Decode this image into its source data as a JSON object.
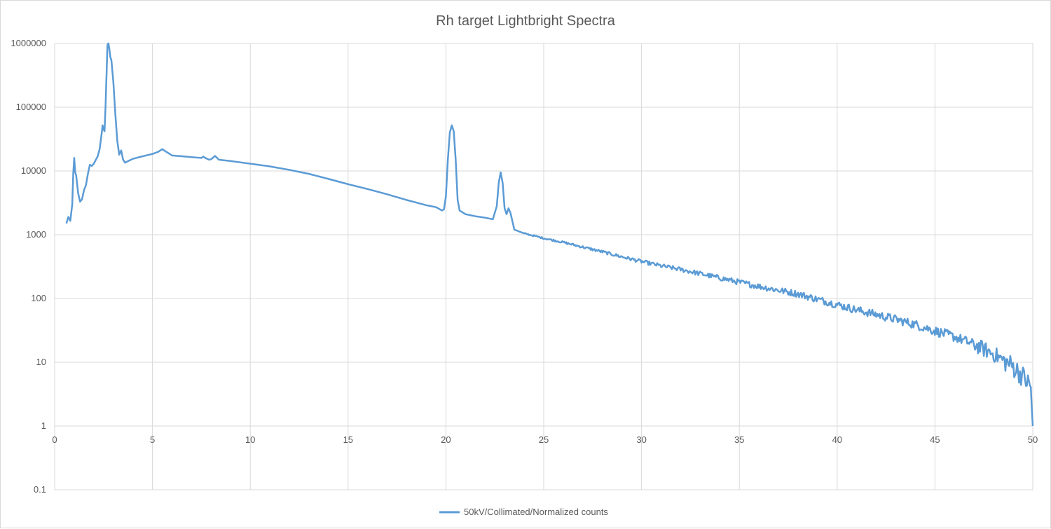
{
  "chart_data": {
    "type": "line",
    "title": "Rh target Lightbright Spectra",
    "xlabel": "",
    "ylabel": "",
    "y_scale": "log",
    "xlim": [
      0,
      50
    ],
    "ylim": [
      0.1,
      1000000
    ],
    "x_ticks": [
      "0",
      "5",
      "10",
      "15",
      "20",
      "25",
      "30",
      "35",
      "40",
      "45",
      "50"
    ],
    "y_ticks": [
      "0.1",
      "1",
      "10",
      "100",
      "1000",
      "10000",
      "100000",
      "1000000"
    ],
    "grid": true,
    "legend_position": "bottom",
    "series": [
      {
        "name": "50kV/Collimated/Normalized counts",
        "color": "#5b9bd5",
        "points": [
          [
            0.6,
            1500
          ],
          [
            0.7,
            1900
          ],
          [
            0.8,
            1650
          ],
          [
            0.9,
            3000
          ],
          [
            0.95,
            9000
          ],
          [
            1.0,
            16000
          ],
          [
            1.05,
            9500
          ],
          [
            1.1,
            8500
          ],
          [
            1.2,
            4500
          ],
          [
            1.3,
            3300
          ],
          [
            1.4,
            3600
          ],
          [
            1.5,
            5000
          ],
          [
            1.6,
            6000
          ],
          [
            1.7,
            9000
          ],
          [
            1.8,
            12500
          ],
          [
            1.9,
            12000
          ],
          [
            2.0,
            13000
          ],
          [
            2.2,
            17000
          ],
          [
            2.3,
            22000
          ],
          [
            2.4,
            38000
          ],
          [
            2.45,
            52000
          ],
          [
            2.5,
            45000
          ],
          [
            2.55,
            42000
          ],
          [
            2.6,
            100000
          ],
          [
            2.7,
            950000
          ],
          [
            2.75,
            1000000
          ],
          [
            2.8,
            800000
          ],
          [
            2.85,
            600000
          ],
          [
            2.9,
            550000
          ],
          [
            3.0,
            250000
          ],
          [
            3.1,
            80000
          ],
          [
            3.2,
            30000
          ],
          [
            3.3,
            18000
          ],
          [
            3.4,
            21000
          ],
          [
            3.5,
            15000
          ],
          [
            3.6,
            13500
          ],
          [
            3.8,
            14500
          ],
          [
            4.0,
            15500
          ],
          [
            4.5,
            17000
          ],
          [
            5.0,
            18500
          ],
          [
            5.3,
            20000
          ],
          [
            5.5,
            22000
          ],
          [
            5.7,
            20000
          ],
          [
            6.0,
            17500
          ],
          [
            6.5,
            17000
          ],
          [
            7.0,
            16500
          ],
          [
            7.5,
            16000
          ],
          [
            7.6,
            16800
          ],
          [
            7.7,
            16000
          ],
          [
            7.9,
            15000
          ],
          [
            8.0,
            15300
          ],
          [
            8.2,
            17200
          ],
          [
            8.4,
            15000
          ],
          [
            9.0,
            14300
          ],
          [
            10.0,
            13000
          ],
          [
            11.0,
            11800
          ],
          [
            12.0,
            10400
          ],
          [
            13.0,
            9000
          ],
          [
            14.0,
            7500
          ],
          [
            15.0,
            6200
          ],
          [
            16.0,
            5200
          ],
          [
            17.0,
            4300
          ],
          [
            18.0,
            3500
          ],
          [
            19.0,
            2900
          ],
          [
            19.5,
            2700
          ],
          [
            19.8,
            2400
          ],
          [
            19.9,
            2500
          ],
          [
            20.0,
            4000
          ],
          [
            20.1,
            15000
          ],
          [
            20.2,
            40000
          ],
          [
            20.3,
            52000
          ],
          [
            20.4,
            42000
          ],
          [
            20.5,
            15000
          ],
          [
            20.6,
            3500
          ],
          [
            20.7,
            2400
          ],
          [
            21.0,
            2100
          ],
          [
            21.5,
            1950
          ],
          [
            22.0,
            1850
          ],
          [
            22.4,
            1750
          ],
          [
            22.6,
            2800
          ],
          [
            22.7,
            6500
          ],
          [
            22.8,
            9500
          ],
          [
            22.9,
            6500
          ],
          [
            23.0,
            2600
          ],
          [
            23.1,
            2100
          ],
          [
            23.2,
            2600
          ],
          [
            23.3,
            2200
          ],
          [
            23.5,
            1200
          ],
          [
            24.0,
            1050
          ],
          [
            25.0,
            880
          ],
          [
            26.0,
            760
          ],
          [
            27.0,
            640
          ],
          [
            28.0,
            540
          ],
          [
            29.0,
            450
          ],
          [
            30.0,
            380
          ],
          [
            31.0,
            325
          ],
          [
            32.0,
            285
          ],
          [
            33.0,
            245
          ],
          [
            34.0,
            210
          ],
          [
            35.0,
            180
          ],
          [
            36.0,
            155
          ],
          [
            37.0,
            135
          ],
          [
            38.0,
            118
          ],
          [
            39.0,
            97
          ],
          [
            40.0,
            80
          ],
          [
            41.0,
            66
          ],
          [
            42.0,
            56
          ],
          [
            43.0,
            47
          ],
          [
            44.0,
            39
          ],
          [
            45.0,
            31
          ],
          [
            46.0,
            25
          ],
          [
            47.0,
            19
          ],
          [
            48.0,
            13.5
          ],
          [
            49.0,
            8.5
          ],
          [
            49.5,
            6
          ],
          [
            49.8,
            4.5
          ],
          [
            49.9,
            4
          ],
          [
            50.0,
            1
          ]
        ]
      }
    ]
  }
}
